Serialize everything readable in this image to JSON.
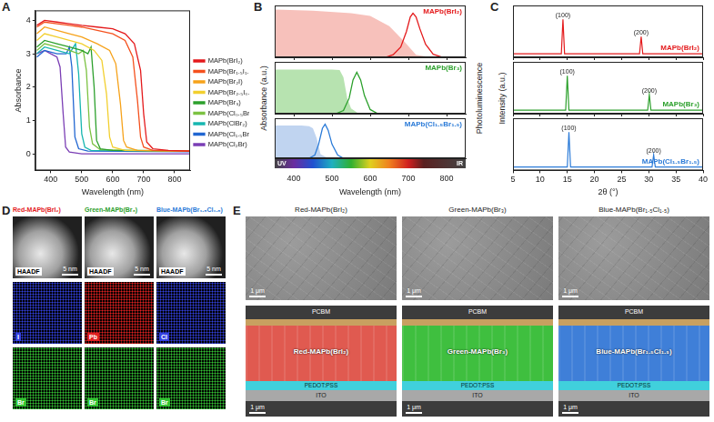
{
  "chart_data": [
    {
      "panel": "A",
      "type": "line",
      "xlabel": "Wavelength (nm)",
      "ylabel": "Absorbance",
      "xlim": [
        350,
        850
      ],
      "xticks": [
        400,
        500,
        600,
        700,
        800
      ],
      "ylim": [
        -0.5,
        4.3
      ],
      "yticks": [
        0,
        1,
        2,
        3,
        4
      ],
      "legend": "right",
      "series": [
        {
          "name": "MAPb(BrI₂)",
          "color": "#e41a1c",
          "x": [
            355,
            380,
            420,
            460,
            500,
            550,
            600,
            640,
            670,
            690,
            700,
            710,
            730,
            780,
            850
          ],
          "values": [
            3.85,
            4.0,
            3.95,
            3.9,
            3.85,
            3.8,
            3.75,
            3.6,
            3.3,
            2.5,
            1.2,
            0.35,
            0.15,
            0.1,
            0.08
          ]
        },
        {
          "name": "MAPb(Br₁.₅I₁.₅)",
          "color": "#f4511e",
          "x": [
            355,
            380,
            420,
            460,
            500,
            550,
            600,
            640,
            665,
            680,
            690,
            700,
            730,
            850
          ],
          "values": [
            3.8,
            3.95,
            3.9,
            3.85,
            3.8,
            3.7,
            3.6,
            3.4,
            2.9,
            1.6,
            0.5,
            0.2,
            0.1,
            0.08
          ]
        },
        {
          "name": "MAPb(Br₂I)",
          "color": "#f6a21a",
          "x": [
            355,
            380,
            420,
            460,
            500,
            550,
            590,
            610,
            625,
            635,
            645,
            680,
            850
          ],
          "values": [
            3.6,
            3.8,
            3.7,
            3.6,
            3.5,
            3.3,
            3.1,
            2.7,
            1.5,
            0.4,
            0.2,
            0.1,
            0.08
          ]
        },
        {
          "name": "MAPb(Br₂.₅I₀.₅)",
          "color": "#f2cf2e",
          "x": [
            355,
            380,
            420,
            460,
            500,
            540,
            565,
            580,
            590,
            600,
            640,
            850
          ],
          "values": [
            3.4,
            3.6,
            3.5,
            3.4,
            3.3,
            3.1,
            2.8,
            1.8,
            0.5,
            0.2,
            0.1,
            0.08
          ]
        },
        {
          "name": "MAPb(Br₃)",
          "color": "#2ca02c",
          "x": [
            355,
            380,
            420,
            460,
            500,
            520,
            530,
            540,
            548,
            560,
            600,
            850
          ],
          "values": [
            3.2,
            3.4,
            3.3,
            3.2,
            3.1,
            3.0,
            3.2,
            2.0,
            0.4,
            0.15,
            0.1,
            0.08
          ]
        },
        {
          "name": "MAPb(Cl₀.₅Br₂.₅)",
          "color": "#7cc242",
          "x": [
            355,
            380,
            420,
            460,
            490,
            505,
            515,
            525,
            535,
            560,
            850
          ],
          "values": [
            3.1,
            3.3,
            3.2,
            3.1,
            3.0,
            3.1,
            2.5,
            0.8,
            0.3,
            0.12,
            0.08
          ]
        },
        {
          "name": "MAPb(ClBr₂)",
          "color": "#17b6b0",
          "x": [
            355,
            380,
            420,
            460,
            480,
            490,
            500,
            510,
            530,
            850
          ],
          "values": [
            3.0,
            3.2,
            3.1,
            3.0,
            3.3,
            2.4,
            0.6,
            0.2,
            0.1,
            0.08
          ]
        },
        {
          "name": "MAPb(Cl₁.₅Br₁.₅)",
          "color": "#2166d1",
          "x": [
            355,
            380,
            420,
            450,
            460,
            468,
            478,
            490,
            520,
            850
          ],
          "values": [
            2.9,
            3.1,
            3.0,
            3.0,
            3.2,
            2.6,
            0.5,
            0.15,
            0.08,
            0.06
          ]
        },
        {
          "name": "MAPb(Cl₂Br)",
          "color": "#7b3fb5",
          "x": [
            355,
            380,
            400,
            420,
            430,
            440,
            448,
            460,
            500,
            850
          ],
          "values": [
            3.0,
            3.1,
            3.0,
            2.9,
            2.6,
            1.2,
            0.2,
            0.05,
            0.0,
            0.0
          ]
        }
      ]
    },
    {
      "panel": "B",
      "type": "line",
      "xlabel": "Wavelength (nm)",
      "ylabel": "Absorbance (a.u.)",
      "y2label": "Photoluminescence",
      "xlim": [
        350,
        850
      ],
      "xticks": [
        400,
        500,
        600,
        700,
        800
      ],
      "ylim": [
        0,
        1
      ],
      "tick_labels": "x",
      "spectrum_labels": [
        "UV",
        "IR"
      ],
      "subplots": [
        {
          "annotation": "MAPb(BrI₂)",
          "color": "#e41a1c",
          "series": [
            {
              "type": "area",
              "color": "#f7c1bb",
              "x": [
                350,
                450,
                550,
                600,
                650,
                690,
                720,
                760
              ],
              "values": [
                0.92,
                0.9,
                0.85,
                0.8,
                0.6,
                0.3,
                0.05,
                0
              ]
            },
            {
              "type": "line",
              "color": "#e41a1c",
              "x": [
                640,
                660,
                680,
                695,
                705,
                712,
                720,
                730,
                745,
                765,
                790
              ],
              "values": [
                0,
                0.05,
                0.2,
                0.5,
                0.78,
                0.85,
                0.78,
                0.55,
                0.25,
                0.06,
                0
              ]
            }
          ]
        },
        {
          "annotation": "MAPb(Br₃)",
          "color": "#2ca02c",
          "series": [
            {
              "type": "area",
              "color": "#b7e3b0",
              "x": [
                350,
                450,
                500,
                520,
                530,
                540,
                550,
                570
              ],
              "values": [
                0.85,
                0.85,
                0.85,
                0.84,
                0.7,
                0.3,
                0.1,
                0
              ]
            },
            {
              "type": "line",
              "color": "#2ca02c",
              "x": [
                510,
                530,
                545,
                555,
                565,
                575,
                585,
                600,
                620
              ],
              "values": [
                0,
                0.06,
                0.3,
                0.65,
                0.8,
                0.65,
                0.35,
                0.08,
                0
              ]
            }
          ]
        },
        {
          "annotation": "MAPb(Cl₁.₅Br₁.₅)",
          "color": "#2b7bd8",
          "series": [
            {
              "type": "area",
              "color": "#c0d4f0",
              "x": [
                350,
                420,
                440,
                450,
                460,
                470,
                490
              ],
              "values": [
                0.82,
                0.82,
                0.8,
                0.75,
                0.5,
                0.1,
                0
              ]
            },
            {
              "type": "line",
              "color": "#2b7bd8",
              "x": [
                440,
                455,
                465,
                475,
                482,
                490,
                500,
                515,
                530
              ],
              "values": [
                0,
                0.08,
                0.35,
                0.75,
                0.85,
                0.7,
                0.35,
                0.08,
                0
              ]
            }
          ]
        }
      ]
    },
    {
      "panel": "C",
      "type": "line",
      "xlabel": "2θ (°)",
      "ylabel": "Intensity (a.u.)",
      "xlim": [
        5,
        40
      ],
      "xticks": [
        5,
        10,
        15,
        20,
        25,
        30,
        35,
        40
      ],
      "ylim": [
        -0.1,
        1.4
      ],
      "tick_labels": "x",
      "subplots": [
        {
          "annotation": "MAPb(BrI₂)",
          "color": "#e41a1c",
          "x": [
            5,
            13.9,
            14.2,
            14.5,
            28.3,
            28.6,
            28.9,
            40
          ],
          "values": [
            0,
            0,
            1,
            0,
            0,
            0.5,
            0,
            0
          ],
          "peak_labels": [
            {
              "x": 14.2,
              "y": 1,
              "text": "(100)"
            },
            {
              "x": 28.6,
              "y": 0.5,
              "text": "(200)"
            }
          ]
        },
        {
          "annotation": "MAPb(Br₃)",
          "color": "#2ca02c",
          "x": [
            5,
            14.7,
            15.0,
            15.3,
            29.8,
            30.1,
            30.4,
            40
          ],
          "values": [
            0,
            0,
            1,
            0,
            0,
            0.45,
            0,
            0
          ],
          "peak_labels": [
            {
              "x": 15.0,
              "y": 1,
              "text": "(100)"
            },
            {
              "x": 30.1,
              "y": 0.45,
              "text": "(200)"
            }
          ]
        },
        {
          "annotation": "MAPb(Cl₁.₅Br₁.₅)",
          "color": "#2b7bd8",
          "x": [
            5,
            15.0,
            15.3,
            15.6,
            30.6,
            30.9,
            31.2,
            40
          ],
          "values": [
            0,
            0,
            1,
            0,
            0,
            0.35,
            0,
            0
          ],
          "peak_labels": [
            {
              "x": 15.3,
              "y": 1,
              "text": "(100)"
            },
            {
              "x": 30.9,
              "y": 0.35,
              "text": "(200)"
            }
          ]
        }
      ]
    }
  ],
  "images": [
    {
      "panel": "D",
      "columns": [
        {
          "title": "Red-MAPb(BrI₂)",
          "color": "#e41a1c",
          "image_label": "HAADF",
          "scale_bar": "5 nm",
          "maps": [
            {
              "element": "I",
              "color": "#3340e0"
            },
            {
              "element": "Br",
              "color": "#33c433"
            }
          ]
        },
        {
          "title": "Green-MAPb(Br₃)",
          "color": "#2ca02c",
          "image_label": "HAADF",
          "scale_bar": "5 nm",
          "maps": [
            {
              "element": "Pb",
              "color": "#e02020"
            },
            {
              "element": "Br",
              "color": "#33c433"
            }
          ]
        },
        {
          "title": "Blue-MAPb(Br₁.₅Cl₁.₅)",
          "color": "#2b7bd8",
          "image_label": "HAADF",
          "scale_bar": "5 nm",
          "maps": [
            {
              "element": "Cl",
              "color": "#3340e0"
            },
            {
              "element": "Br",
              "color": "#33c433"
            }
          ]
        }
      ]
    },
    {
      "panel": "E",
      "columns": [
        {
          "title": "Red-MAPb(BrI₂)",
          "color": "#e05a50",
          "scale_bar": "1 μm",
          "layers": [
            "PCBM",
            "Red-MAPb(BrI₂)",
            "PEDOT:PSS",
            "ITO"
          ]
        },
        {
          "title": "Green-MAPb(Br₃)",
          "color": "#3fbf3f",
          "scale_bar": "1 μm",
          "layers": [
            "PCBM",
            "Green-MAPb(Br₃)",
            "PEDOT:PSS",
            "ITO"
          ]
        },
        {
          "title": "Blue-MAPb(Br₁.₅Cl₁.₅)",
          "color": "#3f7fd8",
          "scale_bar": "1 μm",
          "layers": [
            "PCBM",
            "Blue-MAPb(Br₁.₅Cl₁.₅)",
            "PEDOT:PSS",
            "ITO"
          ]
        }
      ]
    }
  ]
}
